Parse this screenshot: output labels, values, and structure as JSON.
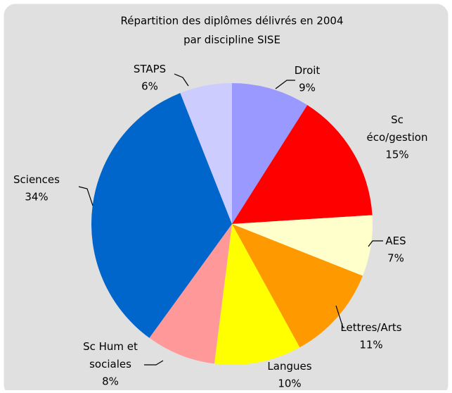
{
  "chart_data": {
    "type": "pie",
    "title": [
      "Répartition des diplômes délivrés en 2004",
      "par discipline SISE"
    ],
    "categories": [
      "Droit",
      "Sc\néco/gestion",
      "AES",
      "Lettres/Arts",
      "Langues",
      "Sc Hum  et\nsociales",
      "Sciences",
      "STAPS"
    ],
    "values": [
      9,
      15,
      7,
      11,
      10,
      8,
      34,
      6
    ],
    "value_labels": [
      "9%",
      "15%",
      "7%",
      "11%",
      "10%",
      "8%",
      "34%",
      "6%"
    ],
    "colors": [
      "#9999ff",
      "#ff0000",
      "#ffffcc",
      "#ff9900",
      "#ffff00",
      "#ff9999",
      "#0066cc",
      "#ccccff"
    ]
  }
}
